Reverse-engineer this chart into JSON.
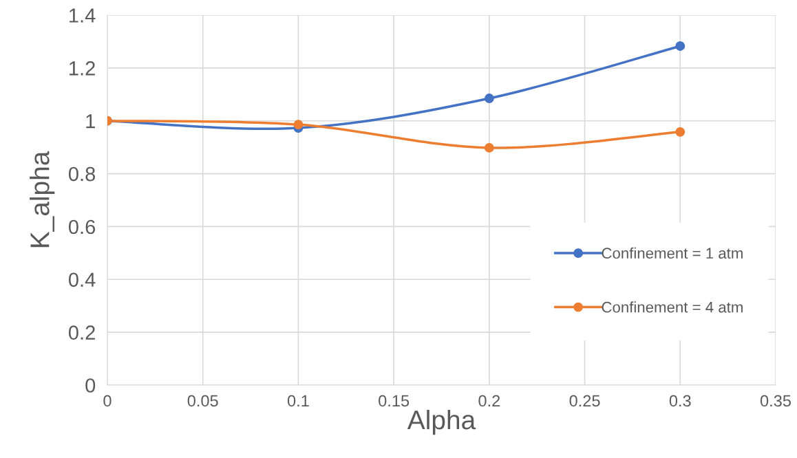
{
  "chart_data": {
    "type": "line",
    "xlabel": "Alpha",
    "ylabel": "K_alpha",
    "x": [
      0,
      0.1,
      0.2,
      0.3
    ],
    "series": [
      {
        "name": "Confinement = 1 atm",
        "color": "#4472c4",
        "values": [
          1.0,
          0.973,
          1.085,
          1.283
        ]
      },
      {
        "name": "Confinement = 4 atm",
        "color": "#ed7d31",
        "values": [
          1.0,
          0.986,
          0.898,
          0.958
        ]
      }
    ],
    "xlim": [
      0,
      0.35
    ],
    "xticks": [
      {
        "value": 0,
        "label": "0"
      },
      0.05,
      0.1,
      0.15,
      0.2,
      0.25,
      0.3,
      0.35
    ],
    "ylim": [
      0,
      1.4
    ],
    "yticks": [
      {
        "value": 0,
        "label": "0"
      },
      0.2,
      0.4,
      0.6,
      0.8,
      {
        "value": 1,
        "label": "1"
      },
      1.2,
      1.4
    ],
    "grid": true,
    "legend": "right",
    "marker": "circle",
    "line_style": "solid"
  }
}
